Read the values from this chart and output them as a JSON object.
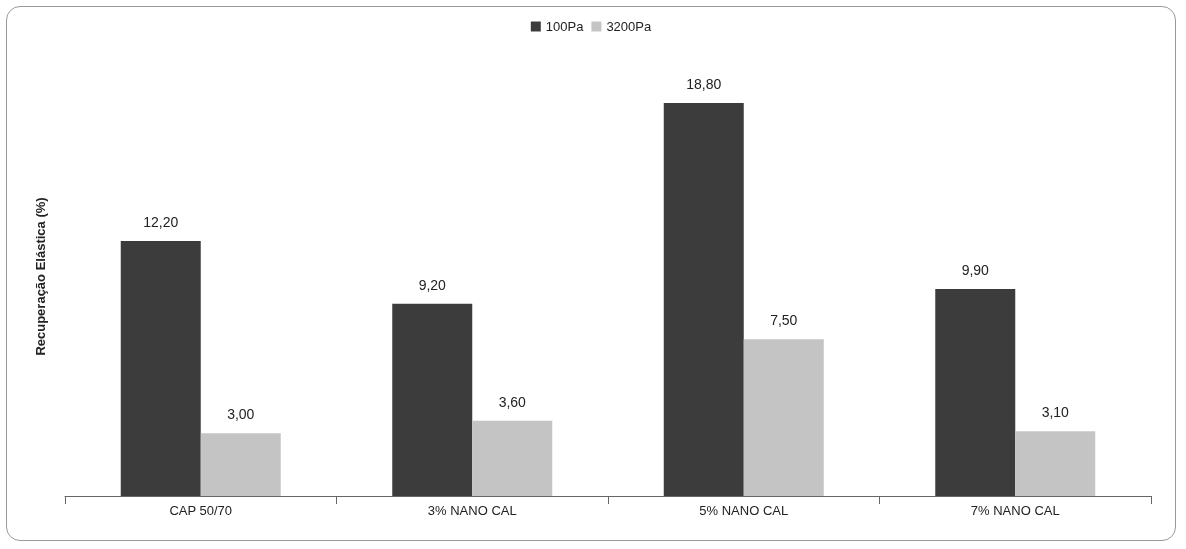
{
  "chart_data": {
    "type": "bar",
    "ylabel": "Recuperação Elástica (%)",
    "categories": [
      "CAP 50/70",
      "3% NANO CAL",
      "5% NANO CAL",
      "7% NANO CAL"
    ],
    "series": [
      {
        "name": "100Pa",
        "color": "#3c3c3c",
        "values": [
          12.2,
          9.2,
          18.8,
          9.9
        ],
        "value_labels": [
          "12,20",
          "9,20",
          "18,80",
          "9,90"
        ]
      },
      {
        "name": "3200Pa",
        "color": "#c4c4c4",
        "values": [
          3.0,
          3.6,
          7.5,
          3.1
        ],
        "value_labels": [
          "3,00",
          "3,60",
          "7,50",
          "3,10"
        ]
      }
    ],
    "legend": "top",
    "grid": false
  }
}
